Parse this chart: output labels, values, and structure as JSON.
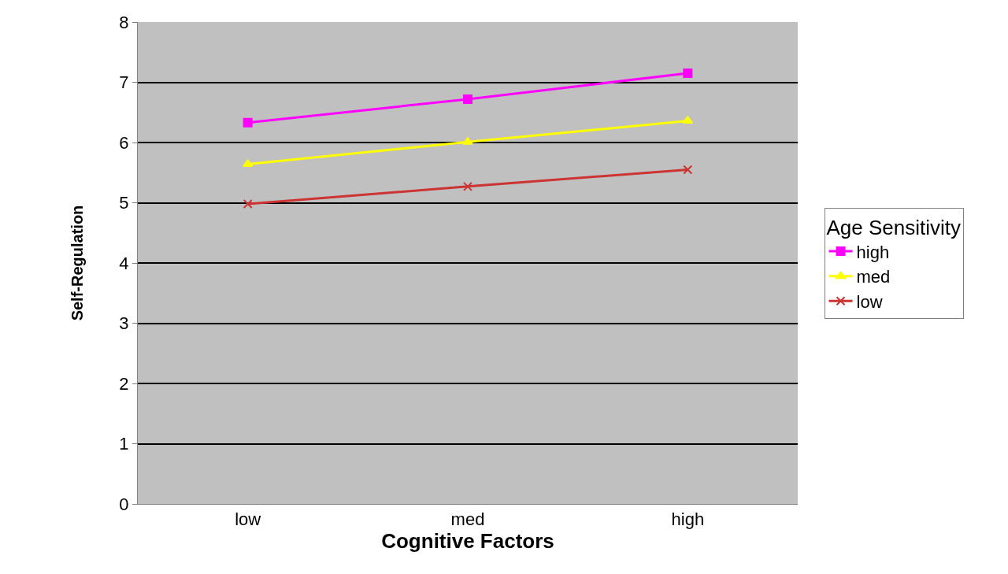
{
  "chart_data": {
    "type": "line",
    "xlabel": "Cognitive Factors",
    "ylabel": "Self-Regulation",
    "legend_title": "Age Sensitivity",
    "categories": [
      "low",
      "med",
      "high"
    ],
    "series": [
      {
        "name": "high",
        "color": "#ff00ff",
        "marker": "square",
        "values": [
          6.33,
          6.72,
          7.15
        ]
      },
      {
        "name": "med",
        "color": "#ffff00",
        "marker": "triangle",
        "values": [
          5.64,
          6.01,
          6.36
        ]
      },
      {
        "name": "low",
        "color": "#cc3333",
        "marker": "cross",
        "values": [
          4.98,
          5.27,
          5.55
        ]
      }
    ],
    "ylim": [
      0,
      8
    ],
    "yticks": [
      0,
      1,
      2,
      3,
      4,
      5,
      6,
      7,
      8
    ],
    "grid": "y",
    "legend": "right"
  }
}
